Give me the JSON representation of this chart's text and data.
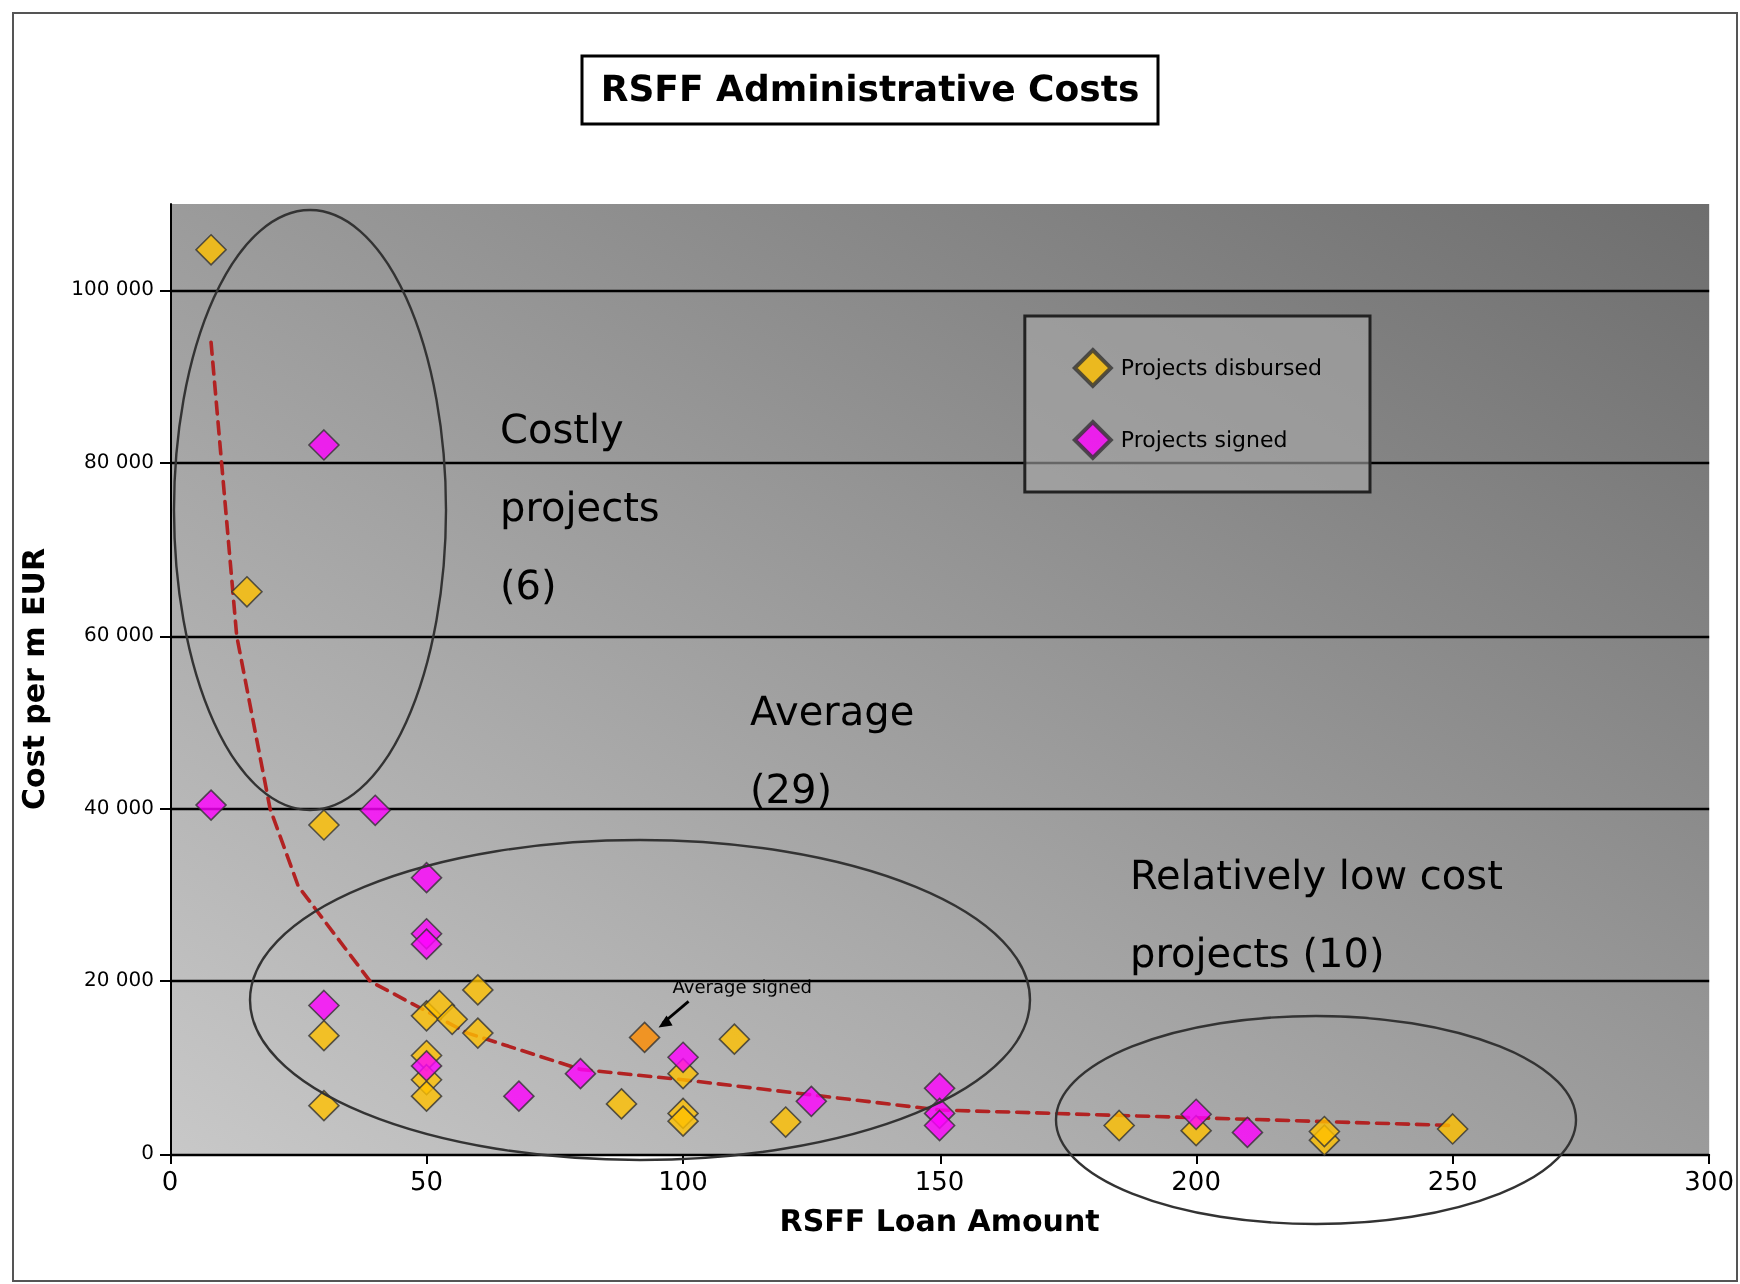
{
  "chart_data": {
    "type": "scatter",
    "title": "RSFF Administrative Costs",
    "xlabel": "RSFF Loan Amount",
    "ylabel": "Cost per m EUR",
    "xlim": [
      0,
      300
    ],
    "xticks": [
      0,
      50,
      100,
      150,
      200,
      250,
      300
    ],
    "ylim": [
      0,
      110000
    ],
    "yticks": [
      {
        "value": 0,
        "label": "0"
      },
      {
        "value": 20000,
        "label": "20 000"
      },
      {
        "value": 40000,
        "label": "40 000"
      },
      {
        "value": 60000,
        "label": "60 000"
      },
      {
        "value": 80000,
        "label": "80 000"
      },
      {
        "value": 100000,
        "label": "100 000"
      }
    ],
    "grid": "y",
    "legend": "top right",
    "marker": "diamond",
    "series": [
      {
        "name": "Projects disbursed",
        "color": "#ffc000",
        "x": [
          8,
          15,
          30,
          30,
          30,
          50,
          52.5,
          55,
          50,
          50,
          50,
          60,
          60,
          88,
          100,
          100,
          100,
          110,
          120,
          185,
          200,
          225,
          225,
          250
        ],
        "values": [
          104700,
          65100,
          38100,
          13700,
          5600,
          16000,
          17200,
          15600,
          11400,
          8600,
          6700,
          19000,
          14000,
          5800,
          9300,
          4700,
          3800,
          13300,
          3700,
          3300,
          2700,
          1600,
          2600,
          2900
        ]
      },
      {
        "name": "Projects signed",
        "color": "#ff00ff",
        "x": [
          8,
          30,
          40,
          50,
          50,
          50,
          30,
          50,
          68,
          80,
          100,
          125,
          150,
          150,
          150,
          200,
          210
        ],
        "values": [
          40400,
          82100,
          39800,
          32000,
          25500,
          24300,
          17200,
          10200,
          6700,
          9300,
          11200,
          6100,
          7600,
          4700,
          3300,
          4600,
          2500
        ]
      },
      {
        "color": "#ff8c00",
        "x": [
          92.5
        ],
        "values": [
          13500
        ]
      },
      {
        "type": "line",
        "color": "#b22222",
        "line_style": "dashed",
        "marker": "none",
        "x": [
          8,
          13,
          19.5,
          25,
          39,
          58,
          80,
          100,
          150,
          200,
          250
        ],
        "values": [
          94000,
          60000,
          40000,
          31000,
          20000,
          14000,
          9800,
          8600,
          5100,
          4200,
          3300
        ]
      }
    ],
    "annotations": [
      "Costly projects (6)",
      "Average (29)",
      "Relatively low cost projects (10)",
      {
        "text": "Average signed",
        "x": 92.5,
        "y": 13500
      }
    ]
  }
}
